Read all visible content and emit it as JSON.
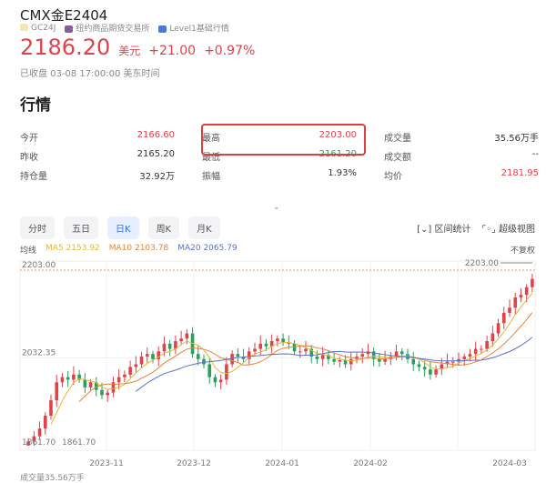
{
  "header": {
    "title": "CMX金E2404",
    "code": "GC24J",
    "exchange": "纽约商品期货交易所",
    "level": "Level1基础行情",
    "price": "2186.20",
    "unit": "美元",
    "change": "+21.00",
    "change_pct": "+0.97%",
    "status": "已收盘 03-08 17:00:00 美东时间"
  },
  "section_title": "行情",
  "quote": [
    {
      "label": "今开",
      "value": "2166.60",
      "color": "red"
    },
    {
      "label": "最高",
      "value": "2203.00",
      "color": "red"
    },
    {
      "label": "成交量",
      "value": "35.56万手",
      "color": "dark"
    },
    {
      "label": "昨收",
      "value": "2165.20",
      "color": "dark"
    },
    {
      "label": "最低",
      "value": "2161.20",
      "color": "green"
    },
    {
      "label": "成交额",
      "value": "--",
      "color": "dark"
    },
    {
      "label": "持仓量",
      "value": "32.92万",
      "color": "dark"
    },
    {
      "label": "振幅",
      "value": "1.93%",
      "color": "dark"
    },
    {
      "label": "均价",
      "value": "2181.95",
      "color": "red"
    }
  ],
  "tabs": [
    {
      "label": "分时"
    },
    {
      "label": "五日"
    },
    {
      "label": "日K",
      "active": true
    },
    {
      "label": "周K"
    },
    {
      "label": "月K"
    }
  ],
  "tools": {
    "range_stats": "区间统计",
    "super_view": "超级视图"
  },
  "ma": {
    "label": "均线",
    "ma5": "MA5 2153.92",
    "ma10": "MA10 2103.78",
    "ma20": "MA20 2065.79",
    "adjust": "不复权",
    "colors": {
      "ma5": "#e8b730",
      "ma10": "#e8833a",
      "ma20": "#5b6fd0"
    }
  },
  "volume_label": "成交量35.56万手",
  "chart_data": {
    "type": "candlestick",
    "y_labels": [
      "2203.00",
      "2032.35",
      "1861.70"
    ],
    "max_label": "2203.00",
    "min_label": "1861.70",
    "ylim": [
      1861.7,
      2203.0
    ],
    "x_labels": [
      "2023-11",
      "2023-12",
      "2024-01",
      "2024-02",
      "2024-03"
    ],
    "up_color": "#e0424a",
    "down_color": "#27a05a",
    "close": [
      1870,
      1880,
      1895,
      1920,
      1950,
      1985,
      1995,
      1990,
      2000,
      1990,
      1975,
      1985,
      1970,
      1960,
      1965,
      1985,
      1995,
      2000,
      2015,
      2020,
      2035,
      2040,
      2030,
      2045,
      2060,
      2050,
      2065,
      2070,
      2080,
      2040,
      2030,
      2020,
      1995,
      1985,
      1990,
      2020,
      2040,
      2035,
      2030,
      2045,
      2050,
      2060,
      2055,
      2065,
      2070,
      2062,
      2060,
      2045,
      2045,
      2050,
      2035,
      2030,
      2038,
      2030,
      2025,
      2028,
      2020,
      2030,
      2035,
      2040,
      2045,
      2030,
      2025,
      2030,
      2035,
      2045,
      2040,
      2030,
      2020,
      2015,
      2010,
      2000,
      2010,
      2020,
      2025,
      2025,
      2030,
      2035,
      2040,
      2050,
      2050,
      2065,
      2080,
      2100,
      2120,
      2130,
      2150,
      2155,
      2170,
      2186
    ]
  }
}
